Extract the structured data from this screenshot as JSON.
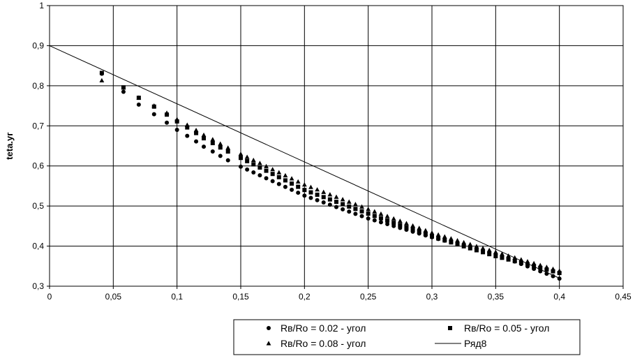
{
  "chart_data": {
    "type": "scatter",
    "title": "",
    "xlabel": "",
    "ylabel": "teta.уг",
    "xlim": [
      0,
      0.45
    ],
    "ylim": [
      0.3,
      1
    ],
    "x_ticks": [
      "0",
      "0,05",
      "0,1",
      "0,15",
      "0,2",
      "0,25",
      "0,3",
      "0,35",
      "0,4",
      "0,45"
    ],
    "y_ticks": [
      "0,3",
      "0,4",
      "0,5",
      "0,6",
      "0,7",
      "0,8",
      "0,9",
      "1"
    ],
    "grid": true,
    "legend_position": "bottom-right",
    "series": [
      {
        "name": "Rв/Ro = 0.02 - угол",
        "marker": "circle",
        "x_range": [
          0.04,
          0.4
        ],
        "points": [
          [
            0.041,
            0.83
          ],
          [
            0.058,
            0.785
          ],
          [
            0.07,
            0.753
          ],
          [
            0.082,
            0.729
          ],
          [
            0.092,
            0.708
          ],
          [
            0.1,
            0.69
          ],
          [
            0.108,
            0.675
          ],
          [
            0.115,
            0.661
          ],
          [
            0.121,
            0.648
          ],
          [
            0.128,
            0.636
          ],
          [
            0.134,
            0.625
          ],
          [
            0.14,
            0.614
          ],
          [
            0.146,
            0.604
          ],
          [
            0.2,
            0.526
          ],
          [
            0.25,
            0.469
          ],
          [
            0.3,
            0.422
          ],
          [
            0.35,
            0.38
          ],
          [
            0.4,
            0.319
          ]
        ]
      },
      {
        "name": "Rв/Ro = 0.05 - угол",
        "marker": "square",
        "x_range": [
          0.04,
          0.4
        ],
        "points": [
          [
            0.041,
            0.832
          ],
          [
            0.058,
            0.796
          ],
          [
            0.07,
            0.77
          ],
          [
            0.082,
            0.748
          ],
          [
            0.092,
            0.728
          ],
          [
            0.1,
            0.711
          ],
          [
            0.108,
            0.696
          ],
          [
            0.115,
            0.682
          ],
          [
            0.121,
            0.669
          ],
          [
            0.128,
            0.657
          ],
          [
            0.134,
            0.646
          ],
          [
            0.14,
            0.636
          ],
          [
            0.2,
            0.54
          ],
          [
            0.25,
            0.481
          ],
          [
            0.3,
            0.424
          ],
          [
            0.35,
            0.375
          ],
          [
            0.4,
            0.333
          ]
        ]
      },
      {
        "name": "Rв/Ro = 0.08 - угол",
        "marker": "triangle",
        "x_range": [
          0.04,
          0.4
        ],
        "points": [
          [
            0.041,
            0.813
          ],
          [
            0.058,
            0.795
          ],
          [
            0.07,
            0.77
          ],
          [
            0.082,
            0.75
          ],
          [
            0.092,
            0.732
          ],
          [
            0.1,
            0.716
          ],
          [
            0.108,
            0.702
          ],
          [
            0.115,
            0.689
          ],
          [
            0.121,
            0.677
          ],
          [
            0.128,
            0.666
          ],
          [
            0.134,
            0.655
          ],
          [
            0.14,
            0.645
          ],
          [
            0.2,
            0.553
          ],
          [
            0.25,
            0.492
          ],
          [
            0.3,
            0.433
          ],
          [
            0.35,
            0.385
          ],
          [
            0.4,
            0.338
          ]
        ]
      },
      {
        "name": "Ряд8",
        "marker": "line",
        "points": [
          [
            0,
            0.9
          ],
          [
            0.4,
            0.32
          ]
        ]
      }
    ]
  }
}
